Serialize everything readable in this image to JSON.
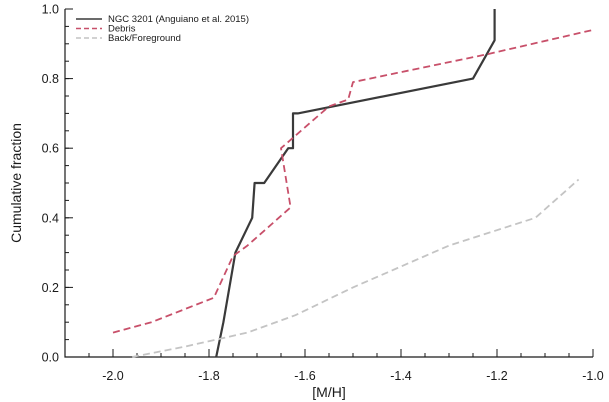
{
  "chart_data": {
    "type": "line",
    "xlabel": "[M/H]",
    "ylabel": "Cumulative fraction",
    "xlim": [
      -2.1,
      -1.0
    ],
    "ylim": [
      0.0,
      1.0
    ],
    "x_ticks": [
      -2.0,
      -1.8,
      -1.6,
      -1.4,
      -1.2,
      -1.0
    ],
    "x_tick_labels": [
      "-2.0",
      "-1.8",
      "-1.6",
      "-1.4",
      "-1.2",
      "-1.0"
    ],
    "y_ticks": [
      0.0,
      0.2,
      0.4,
      0.6,
      0.8,
      1.0
    ],
    "y_tick_labels": [
      "0.0",
      "0.2",
      "0.4",
      "0.6",
      "0.8",
      "1.0"
    ],
    "grid": false,
    "legend_position": "top-left",
    "series": [
      {
        "name": "NGC 3201 (Anguiano et al. 2015)",
        "color": "#3a3a3a",
        "style": "solid",
        "points": [
          [
            -1.785,
            0.0
          ],
          [
            -1.77,
            0.1
          ],
          [
            -1.745,
            0.3
          ],
          [
            -1.71,
            0.4
          ],
          [
            -1.705,
            0.5
          ],
          [
            -1.685,
            0.5
          ],
          [
            -1.635,
            0.6
          ],
          [
            -1.625,
            0.6
          ],
          [
            -1.625,
            0.7
          ],
          [
            -1.615,
            0.7
          ],
          [
            -1.25,
            0.8
          ],
          [
            -1.205,
            0.91
          ],
          [
            -1.205,
            1.0
          ]
        ]
      },
      {
        "name": "Debris",
        "color": "#c8506a",
        "style": "dashed",
        "points": [
          [
            -2.0,
            0.07
          ],
          [
            -1.92,
            0.1
          ],
          [
            -1.79,
            0.17
          ],
          [
            -1.75,
            0.29
          ],
          [
            -1.72,
            0.32
          ],
          [
            -1.63,
            0.43
          ],
          [
            -1.65,
            0.6
          ],
          [
            -1.55,
            0.72
          ],
          [
            -1.51,
            0.74
          ],
          [
            -1.5,
            0.79
          ],
          [
            -1.22,
            0.87
          ],
          [
            -1.0,
            0.94
          ]
        ]
      },
      {
        "name": "Back/Foreground",
        "color": "#c4c4c4",
        "style": "dashed",
        "points": [
          [
            -1.96,
            0.0
          ],
          [
            -1.85,
            0.03
          ],
          [
            -1.72,
            0.07
          ],
          [
            -1.62,
            0.12
          ],
          [
            -1.5,
            0.2
          ],
          [
            -1.3,
            0.32
          ],
          [
            -1.12,
            0.4
          ],
          [
            -1.03,
            0.51
          ]
        ]
      }
    ]
  }
}
